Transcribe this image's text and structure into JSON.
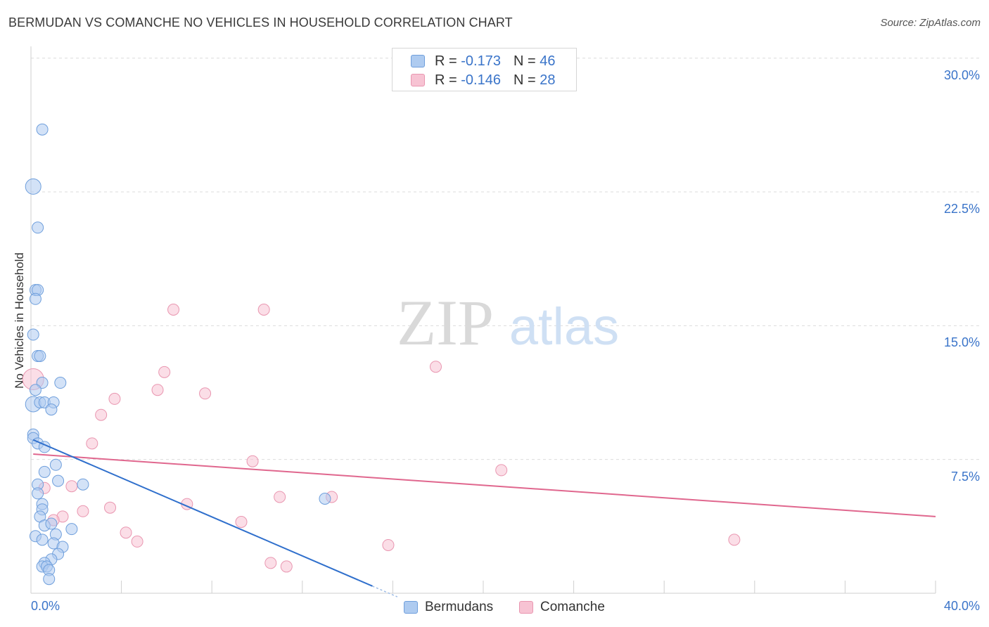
{
  "title": "BERMUDAN VS COMANCHE NO VEHICLES IN HOUSEHOLD CORRELATION CHART",
  "source": "Source: ZipAtlas.com",
  "watermark": {
    "zip": "ZIP",
    "atlas": "atlas"
  },
  "colors": {
    "blue_fill": "#aecbf0",
    "blue_stroke": "#6f9fdc",
    "blue_line": "#2f6fcc",
    "pink_fill": "#f7c3d3",
    "pink_stroke": "#e996b0",
    "pink_line": "#e0678e",
    "tick_text": "#3a74c9"
  },
  "legend_top": [
    {
      "r_label": "R =",
      "r_value": "-0.173",
      "n_label": "N =",
      "n_value": "46"
    },
    {
      "r_label": "R =",
      "r_value": "-0.146",
      "n_label": "N =",
      "n_value": "28"
    }
  ],
  "legend_bottom": [
    "Bermudans",
    "Comanche"
  ],
  "chart_data": {
    "type": "scatter",
    "title": "BERMUDAN VS COMANCHE NO VEHICLES IN HOUSEHOLD CORRELATION CHART",
    "xlabel": "",
    "ylabel": "No Vehicles in Household",
    "xlim": [
      0,
      40
    ],
    "ylim": [
      0,
      30.5
    ],
    "x_tick_labels": [
      "0.0%",
      "40.0%"
    ],
    "y_ticks": [
      7.5,
      15.0,
      22.5,
      30.0
    ],
    "y_tick_labels": [
      "7.5%",
      "15.0%",
      "22.5%",
      "30.0%"
    ],
    "series": [
      {
        "name": "Bermudans",
        "r": -0.173,
        "n": 46,
        "trend": {
          "x": [
            0.1,
            15.1
          ],
          "y": [
            8.6,
            0.4
          ]
        },
        "points": [
          {
            "x": 0.5,
            "y": 26.0,
            "s": 1
          },
          {
            "x": 0.1,
            "y": 22.8,
            "s": 2
          },
          {
            "x": 0.3,
            "y": 20.5,
            "s": 1
          },
          {
            "x": 0.2,
            "y": 17.0,
            "s": 1
          },
          {
            "x": 0.3,
            "y": 17.0,
            "s": 1
          },
          {
            "x": 0.2,
            "y": 16.5,
            "s": 1
          },
          {
            "x": 0.1,
            "y": 14.5,
            "s": 1
          },
          {
            "x": 0.3,
            "y": 13.3,
            "s": 1
          },
          {
            "x": 0.4,
            "y": 13.3,
            "s": 1
          },
          {
            "x": 0.5,
            "y": 11.8,
            "s": 1
          },
          {
            "x": 1.3,
            "y": 11.8,
            "s": 1
          },
          {
            "x": 0.2,
            "y": 11.4,
            "s": 1
          },
          {
            "x": 0.1,
            "y": 10.6,
            "s": 2
          },
          {
            "x": 0.4,
            "y": 10.7,
            "s": 1
          },
          {
            "x": 0.6,
            "y": 10.7,
            "s": 1
          },
          {
            "x": 1.0,
            "y": 10.7,
            "s": 1
          },
          {
            "x": 0.9,
            "y": 10.3,
            "s": 1
          },
          {
            "x": 0.1,
            "y": 8.9,
            "s": 1
          },
          {
            "x": 0.1,
            "y": 8.7,
            "s": 1
          },
          {
            "x": 0.3,
            "y": 8.4,
            "s": 1
          },
          {
            "x": 0.6,
            "y": 8.2,
            "s": 1
          },
          {
            "x": 1.1,
            "y": 7.2,
            "s": 1
          },
          {
            "x": 0.6,
            "y": 6.8,
            "s": 1
          },
          {
            "x": 1.2,
            "y": 6.3,
            "s": 1
          },
          {
            "x": 2.3,
            "y": 6.1,
            "s": 1
          },
          {
            "x": 0.3,
            "y": 6.1,
            "s": 1
          },
          {
            "x": 0.3,
            "y": 5.6,
            "s": 1
          },
          {
            "x": 0.5,
            "y": 5.0,
            "s": 1
          },
          {
            "x": 0.5,
            "y": 4.7,
            "s": 1
          },
          {
            "x": 0.4,
            "y": 4.3,
            "s": 1
          },
          {
            "x": 0.6,
            "y": 3.8,
            "s": 1
          },
          {
            "x": 0.9,
            "y": 3.9,
            "s": 1
          },
          {
            "x": 1.8,
            "y": 3.6,
            "s": 1
          },
          {
            "x": 0.2,
            "y": 3.2,
            "s": 1
          },
          {
            "x": 0.5,
            "y": 3.0,
            "s": 1
          },
          {
            "x": 1.1,
            "y": 3.3,
            "s": 1
          },
          {
            "x": 1.0,
            "y": 2.8,
            "s": 1
          },
          {
            "x": 1.4,
            "y": 2.6,
            "s": 1
          },
          {
            "x": 1.2,
            "y": 2.2,
            "s": 1
          },
          {
            "x": 0.9,
            "y": 1.9,
            "s": 1
          },
          {
            "x": 0.6,
            "y": 1.7,
            "s": 1
          },
          {
            "x": 0.5,
            "y": 1.5,
            "s": 1
          },
          {
            "x": 0.7,
            "y": 1.5,
            "s": 1
          },
          {
            "x": 0.8,
            "y": 1.3,
            "s": 1
          },
          {
            "x": 0.8,
            "y": 0.8,
            "s": 1
          },
          {
            "x": 13.0,
            "y": 5.3,
            "s": 1
          }
        ]
      },
      {
        "name": "Comanche",
        "r": -0.146,
        "n": 28,
        "trend": {
          "x": [
            0.1,
            40.0
          ],
          "y": [
            7.8,
            4.3
          ]
        },
        "points": [
          {
            "x": 0.1,
            "y": 12.0,
            "s": 3
          },
          {
            "x": 6.3,
            "y": 15.9,
            "s": 1
          },
          {
            "x": 10.3,
            "y": 15.9,
            "s": 1
          },
          {
            "x": 17.9,
            "y": 12.7,
            "s": 1
          },
          {
            "x": 5.9,
            "y": 12.4,
            "s": 1
          },
          {
            "x": 5.6,
            "y": 11.4,
            "s": 1
          },
          {
            "x": 7.7,
            "y": 11.2,
            "s": 1
          },
          {
            "x": 3.7,
            "y": 10.9,
            "s": 1
          },
          {
            "x": 3.1,
            "y": 10.0,
            "s": 1
          },
          {
            "x": 2.7,
            "y": 8.4,
            "s": 1
          },
          {
            "x": 9.8,
            "y": 7.4,
            "s": 1
          },
          {
            "x": 20.8,
            "y": 6.9,
            "s": 1
          },
          {
            "x": 0.6,
            "y": 5.9,
            "s": 1
          },
          {
            "x": 1.8,
            "y": 6.0,
            "s": 1
          },
          {
            "x": 11.0,
            "y": 5.4,
            "s": 1
          },
          {
            "x": 13.3,
            "y": 5.4,
            "s": 1
          },
          {
            "x": 6.9,
            "y": 5.0,
            "s": 1
          },
          {
            "x": 3.5,
            "y": 4.8,
            "s": 1
          },
          {
            "x": 2.3,
            "y": 4.6,
            "s": 1
          },
          {
            "x": 1.4,
            "y": 4.3,
            "s": 1
          },
          {
            "x": 1.0,
            "y": 4.1,
            "s": 1
          },
          {
            "x": 9.3,
            "y": 4.0,
            "s": 1
          },
          {
            "x": 4.2,
            "y": 3.4,
            "s": 1
          },
          {
            "x": 4.7,
            "y": 2.9,
            "s": 1
          },
          {
            "x": 15.8,
            "y": 2.7,
            "s": 1
          },
          {
            "x": 31.1,
            "y": 3.0,
            "s": 1
          },
          {
            "x": 10.6,
            "y": 1.7,
            "s": 1
          },
          {
            "x": 11.3,
            "y": 1.5,
            "s": 1
          }
        ]
      }
    ]
  }
}
